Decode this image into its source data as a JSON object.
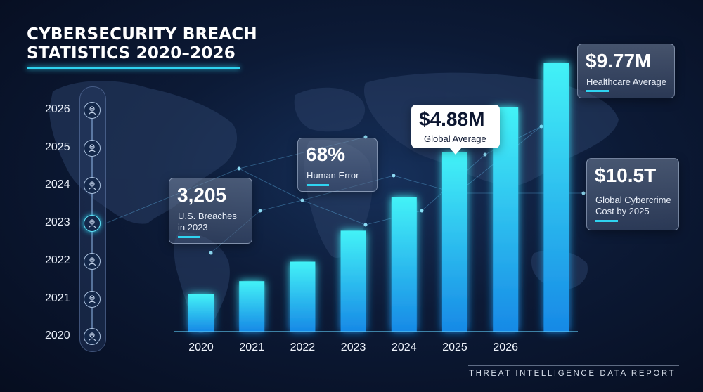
{
  "header": {
    "title_line1": "CYBERSECURITY BREACH",
    "title_line2": "STATISTICS 2020–2026"
  },
  "timeline": {
    "years": [
      "2026",
      "2025",
      "2024",
      "2023",
      "2022",
      "2021",
      "2020"
    ],
    "active_year": "2023",
    "node_icon": "hacker-icon"
  },
  "callouts": {
    "us_breaches": {
      "value": "3,205",
      "line1": "U.S. Breaches",
      "line2": "in 2023"
    },
    "human_error": {
      "value": "68%",
      "label": "Human Error"
    },
    "global_average": {
      "value": "$4.88M",
      "label": "Global Average"
    },
    "healthcare_average": {
      "value": "$9.77M",
      "label": "Healthcare Average"
    },
    "global_cybercrime": {
      "value": "$10.5T",
      "line1": "Global Cybercrime",
      "line2": "Cost by 2025"
    }
  },
  "footer": {
    "text": "THREAT INTELLIGENCE DATA REPORT"
  },
  "colors": {
    "accent": "#2fd3f0",
    "bar_top": "#43f2f7",
    "bar_bottom": "#1789e6",
    "background": "#0c1a36"
  },
  "chart_data": {
    "type": "bar",
    "categories": [
      "2020",
      "2021",
      "2022",
      "2023",
      "2024",
      "2025",
      "2026",
      ""
    ],
    "values": [
      1.0,
      1.35,
      1.87,
      2.7,
      3.6,
      4.8,
      6.0,
      7.2
    ],
    "ylim": [
      0,
      7.7
    ],
    "grid": false,
    "legend": "none"
  }
}
